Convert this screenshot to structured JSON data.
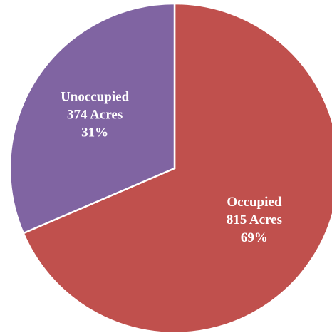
{
  "chart_data": {
    "type": "pie",
    "categories": [
      "Occupied",
      "Unoccupied"
    ],
    "values": [
      815,
      374
    ],
    "value_labels": [
      "815 Acres",
      "374 Acres"
    ],
    "percents": [
      69,
      31
    ],
    "percent_labels": [
      "69%",
      "31%"
    ],
    "colors": [
      "#c0504d",
      "#8064a2"
    ]
  }
}
